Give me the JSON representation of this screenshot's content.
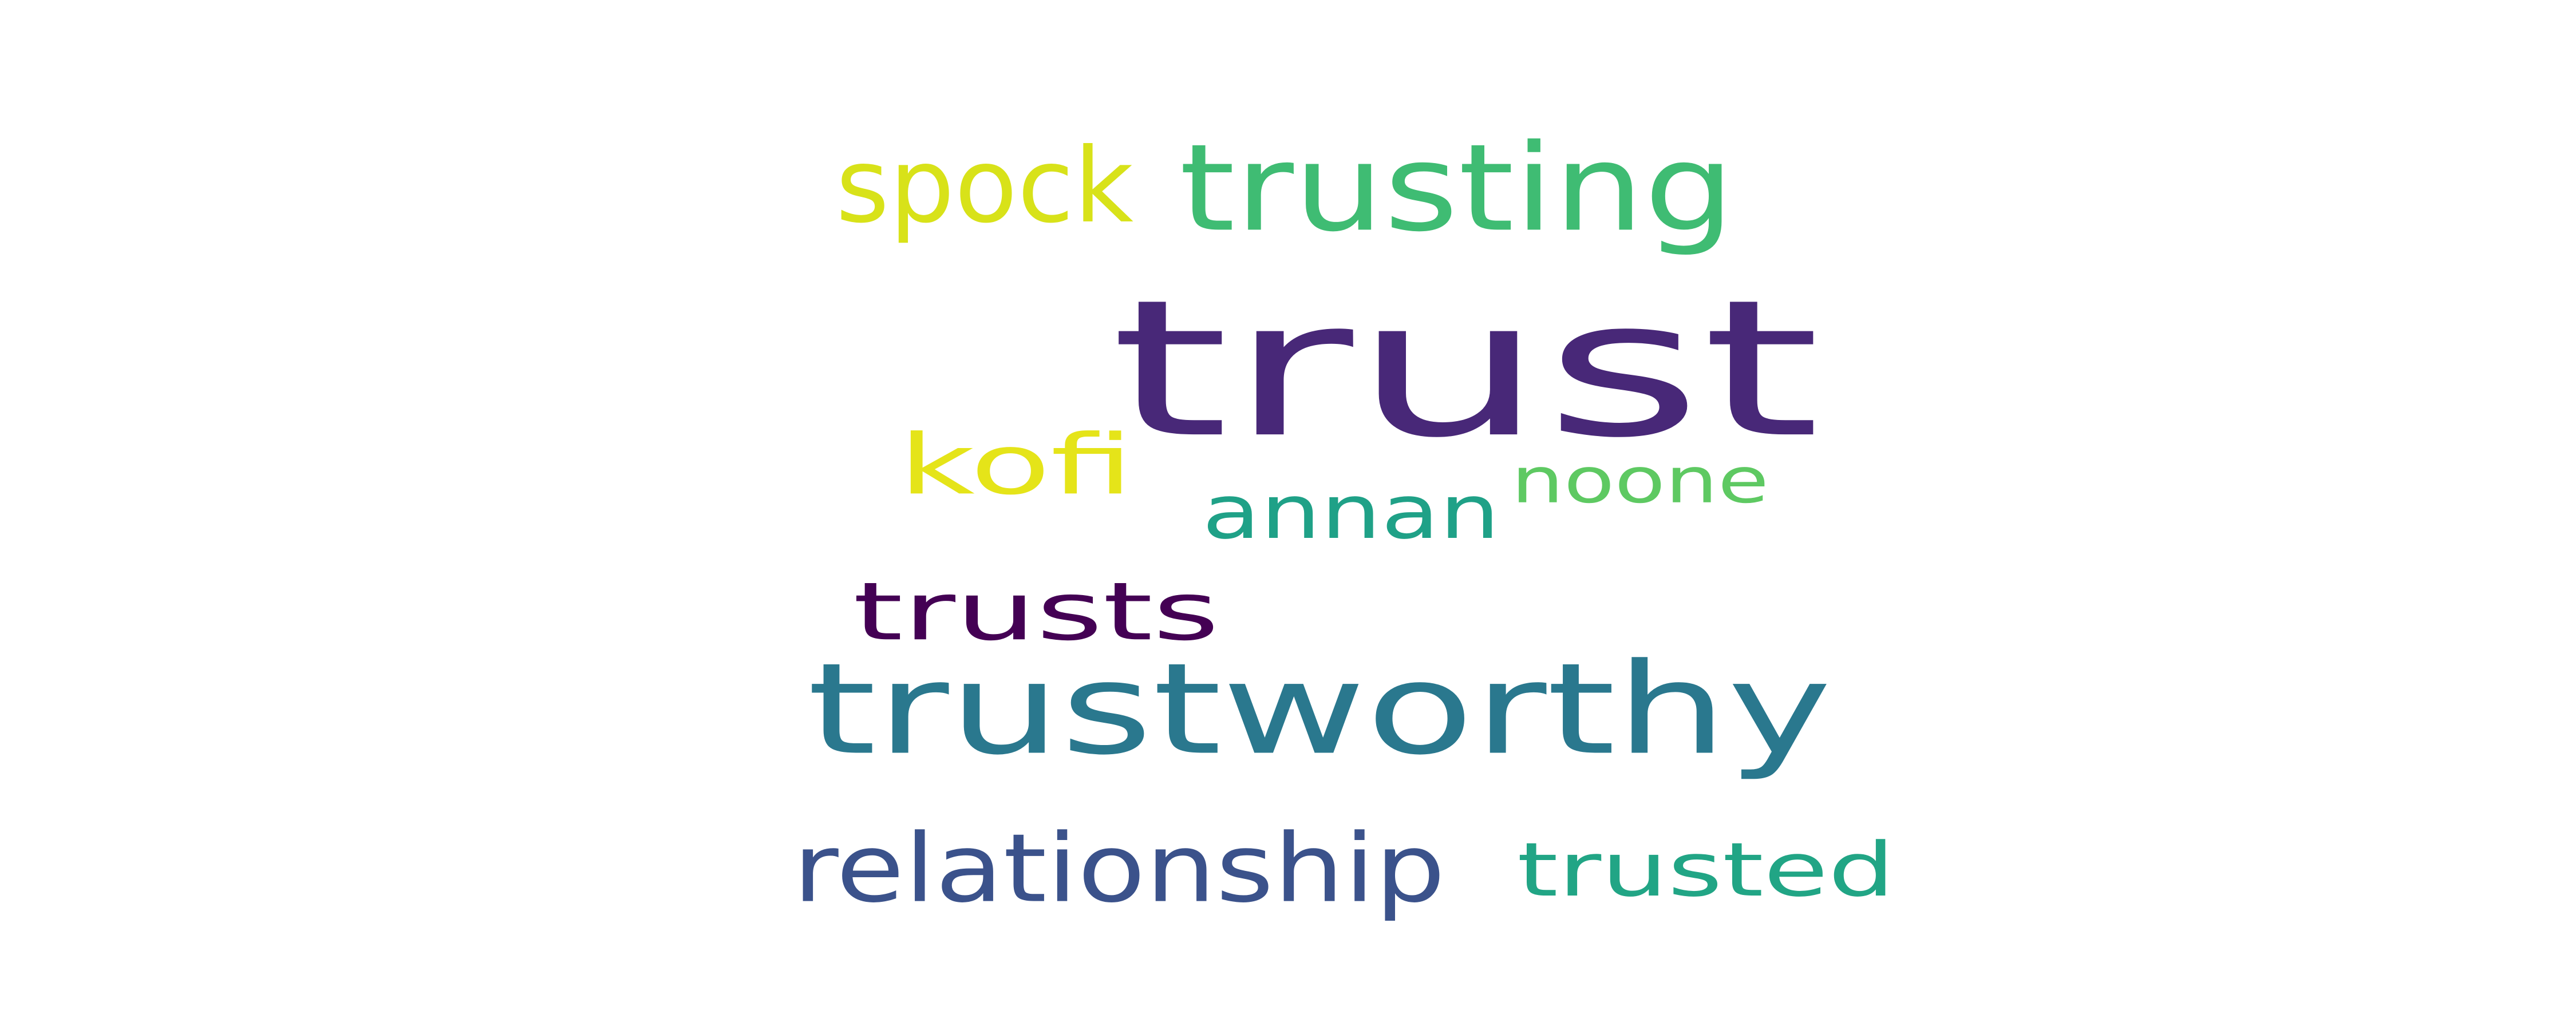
{
  "wordcloud": {
    "words": [
      {
        "id": "trust",
        "text": "trust",
        "color": "#482878"
      },
      {
        "id": "trustworthy",
        "text": "trustworthy",
        "color": "#2a788e"
      },
      {
        "id": "trusting",
        "text": "trusting",
        "color": "#3fbc73"
      },
      {
        "id": "spock",
        "text": "spock",
        "color": "#d8e219"
      },
      {
        "id": "kofi",
        "text": "kofi",
        "color": "#e5e419"
      },
      {
        "id": "annan",
        "text": "annan",
        "color": "#1fa187"
      },
      {
        "id": "noone",
        "text": "noone",
        "color": "#5ec962"
      },
      {
        "id": "trusts",
        "text": "trusts",
        "color": "#440154"
      },
      {
        "id": "relationship",
        "text": "relationship",
        "color": "#3b528b"
      },
      {
        "id": "trusted",
        "text": "trusted",
        "color": "#21a585"
      }
    ]
  }
}
